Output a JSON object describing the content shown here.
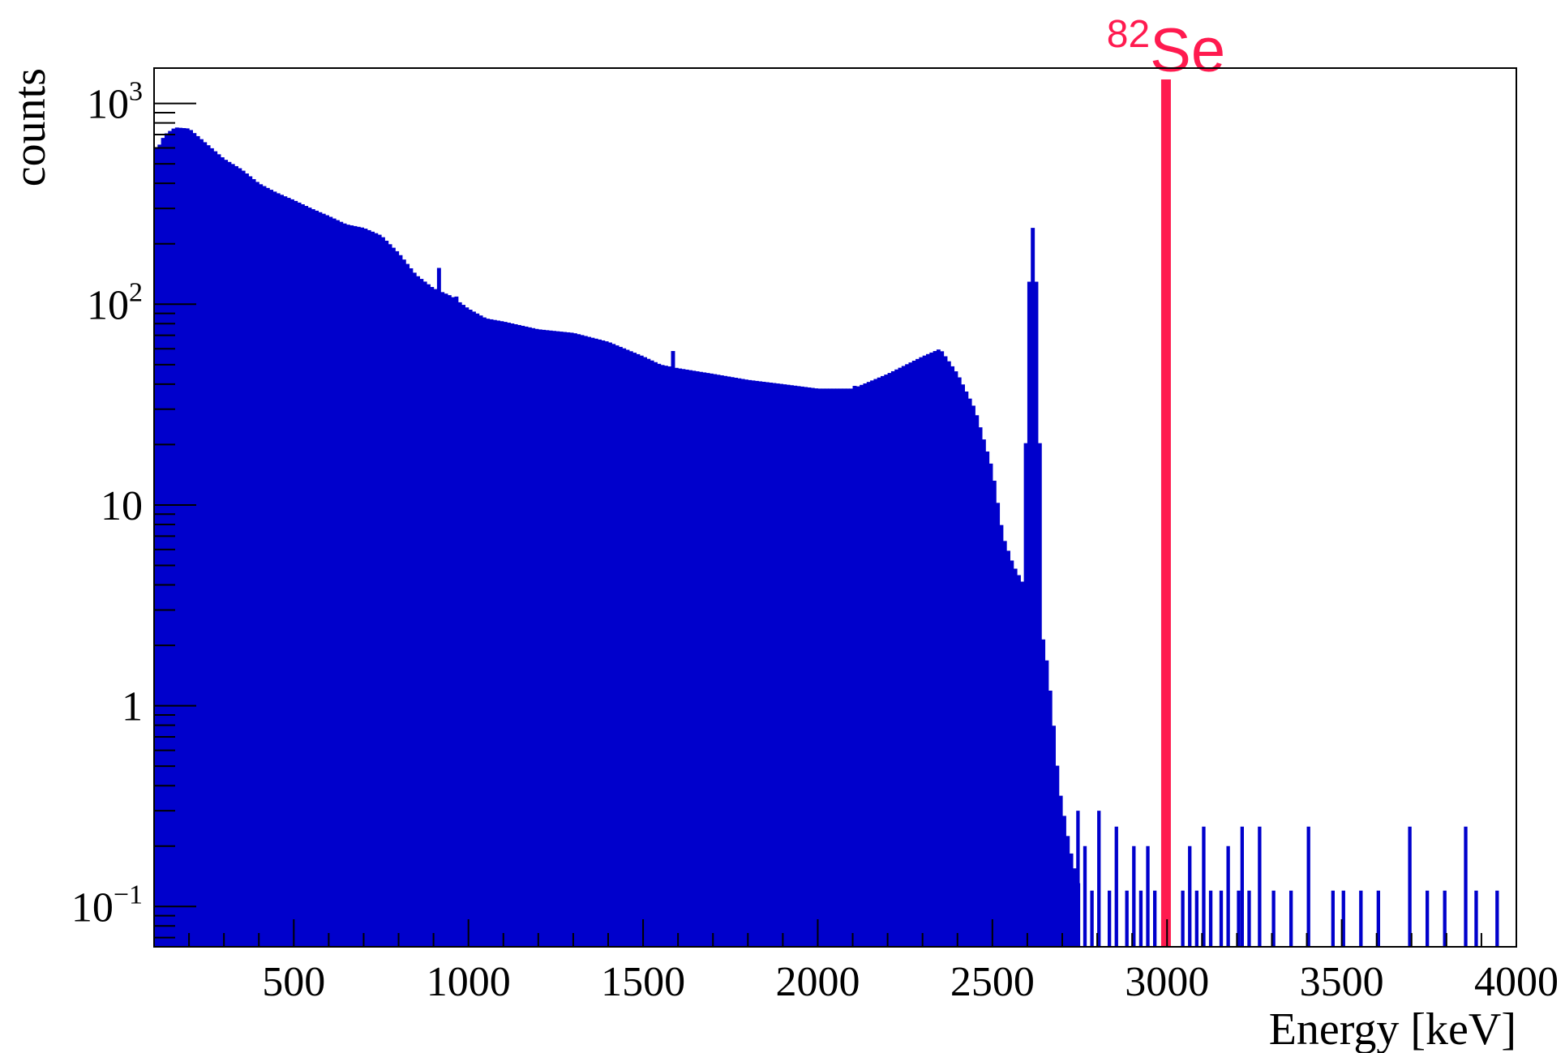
{
  "chart_data": {
    "type": "bar",
    "xlabel": "Energy [keV]",
    "ylabel": "counts",
    "xlim": [
      100,
      4000
    ],
    "ylim": [
      0.063,
      1500
    ],
    "log_y": true,
    "grid": false,
    "x_ticks": [
      {
        "value": 500,
        "label": "500"
      },
      {
        "value": 1000,
        "label": "1000"
      },
      {
        "value": 1500,
        "label": "1500"
      },
      {
        "value": 2000,
        "label": "2000"
      },
      {
        "value": 2500,
        "label": "2500"
      },
      {
        "value": 3000,
        "label": "3000"
      },
      {
        "value": 3500,
        "label": "3500"
      },
      {
        "value": 4000,
        "label": "4000"
      }
    ],
    "y_ticks": [
      {
        "value": 0.1,
        "base": "10",
        "exp": "−1"
      },
      {
        "value": 1,
        "base": "1",
        "exp": ""
      },
      {
        "value": 10,
        "base": "10",
        "exp": ""
      },
      {
        "value": 100,
        "base": "10",
        "exp": "2"
      },
      {
        "value": 1000,
        "base": "10",
        "exp": "3"
      }
    ],
    "series": [
      {
        "color": "#0000cc",
        "bin_width": 10,
        "continuum": [
          [
            110,
            600
          ],
          [
            130,
            700
          ],
          [
            160,
            760
          ],
          [
            200,
            750
          ],
          [
            250,
            630
          ],
          [
            300,
            530
          ],
          [
            350,
            470
          ],
          [
            400,
            400
          ],
          [
            450,
            360
          ],
          [
            500,
            330
          ],
          [
            550,
            300
          ],
          [
            600,
            275
          ],
          [
            650,
            250
          ],
          [
            700,
            240
          ],
          [
            750,
            220
          ],
          [
            800,
            180
          ],
          [
            850,
            140
          ],
          [
            900,
            120
          ],
          [
            950,
            110
          ],
          [
            1000,
            95
          ],
          [
            1050,
            85
          ],
          [
            1100,
            82
          ],
          [
            1200,
            75
          ],
          [
            1300,
            72
          ],
          [
            1400,
            65
          ],
          [
            1500,
            55
          ],
          [
            1550,
            50
          ],
          [
            1600,
            48
          ],
          [
            1700,
            45
          ],
          [
            1800,
            42
          ],
          [
            1900,
            40
          ],
          [
            2000,
            38
          ],
          [
            2100,
            38
          ],
          [
            2200,
            45
          ],
          [
            2300,
            55
          ],
          [
            2350,
            60
          ],
          [
            2400,
            45
          ],
          [
            2450,
            30
          ],
          [
            2500,
            15
          ],
          [
            2530,
            7
          ],
          [
            2560,
            5
          ],
          [
            2590,
            4
          ],
          [
            2620,
            3
          ],
          [
            2650,
            2
          ],
          [
            2670,
            1
          ],
          [
            2690,
            0.4
          ],
          [
            2720,
            0.2
          ],
          [
            2750,
            0.12
          ]
        ],
        "peaks": [
          {
            "x": 511,
            "height": 300,
            "sigma": 4
          },
          {
            "x": 583,
            "height": 210,
            "sigma": 4
          },
          {
            "x": 911,
            "height": 250,
            "sigma": 4
          },
          {
            "x": 969,
            "height": 180,
            "sigma": 4
          },
          {
            "x": 1588,
            "height": 70,
            "sigma": 5
          },
          {
            "x": 2104,
            "height": 40,
            "sigma": 5
          },
          {
            "x": 2615,
            "height": 240,
            "sigma": 9
          }
        ],
        "tail_bins": [
          {
            "x": 2740,
            "value": 0.3
          },
          {
            "x": 2760,
            "value": 0.2
          },
          {
            "x": 2780,
            "value": 0.12
          },
          {
            "x": 2800,
            "value": 0.3
          },
          {
            "x": 2830,
            "value": 0.12
          },
          {
            "x": 2850,
            "value": 0.25
          },
          {
            "x": 2880,
            "value": 0.12
          },
          {
            "x": 2900,
            "value": 0.2
          },
          {
            "x": 2920,
            "value": 0.12
          },
          {
            "x": 2940,
            "value": 0.2
          },
          {
            "x": 2960,
            "value": 0.12
          },
          {
            "x": 2990,
            "value": 0.12
          },
          {
            "x": 3040,
            "value": 0.12
          },
          {
            "x": 3060,
            "value": 0.2
          },
          {
            "x": 3080,
            "value": 0.12
          },
          {
            "x": 3100,
            "value": 0.25
          },
          {
            "x": 3120,
            "value": 0.12
          },
          {
            "x": 3150,
            "value": 0.12
          },
          {
            "x": 3170,
            "value": 0.2
          },
          {
            "x": 3200,
            "value": 0.12
          },
          {
            "x": 3210,
            "value": 0.25
          },
          {
            "x": 3230,
            "value": 0.12
          },
          {
            "x": 3260,
            "value": 0.25
          },
          {
            "x": 3300,
            "value": 0.12
          },
          {
            "x": 3350,
            "value": 0.12
          },
          {
            "x": 3400,
            "value": 0.25
          },
          {
            "x": 3470,
            "value": 0.12
          },
          {
            "x": 3500,
            "value": 0.12
          },
          {
            "x": 3550,
            "value": 0.12
          },
          {
            "x": 3600,
            "value": 0.12
          },
          {
            "x": 3690,
            "value": 0.25
          },
          {
            "x": 3740,
            "value": 0.12
          },
          {
            "x": 3790,
            "value": 0.12
          },
          {
            "x": 3850,
            "value": 0.25
          },
          {
            "x": 3880,
            "value": 0.12
          },
          {
            "x": 3940,
            "value": 0.12
          }
        ]
      }
    ],
    "annotations": [
      {
        "type": "vline",
        "x": 2997,
        "color": "#ff1a4f",
        "label_sup": "82",
        "label": "Se"
      }
    ]
  }
}
